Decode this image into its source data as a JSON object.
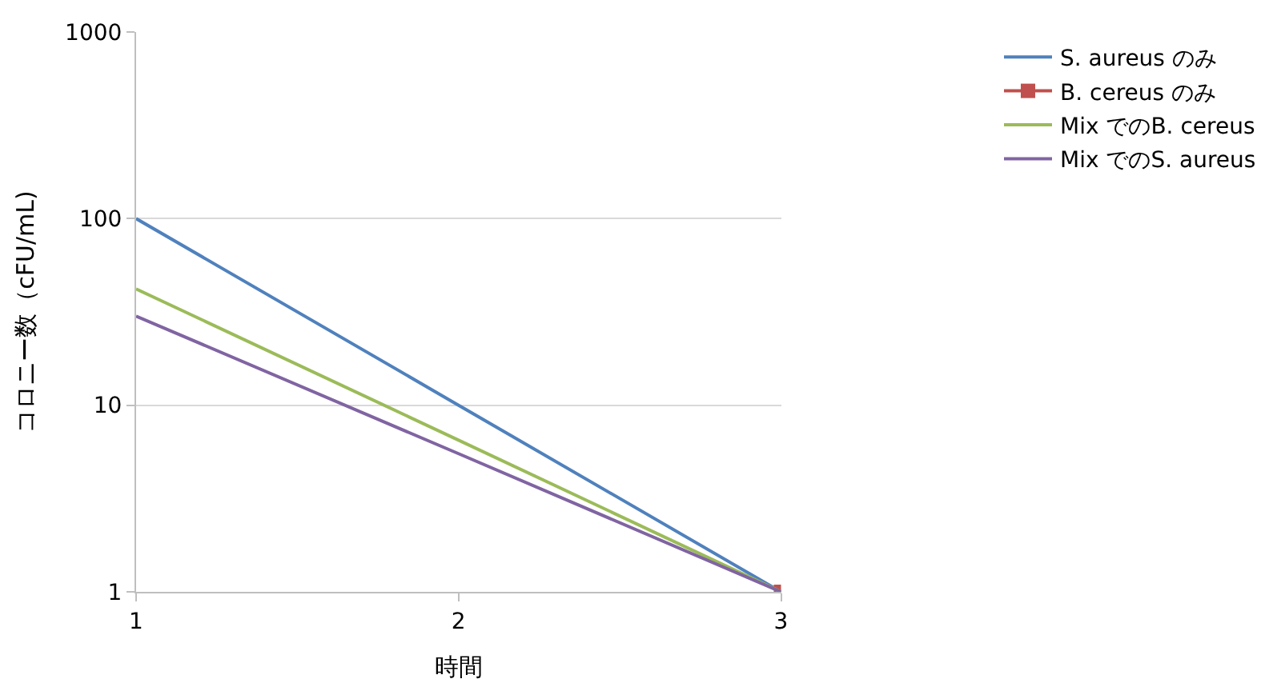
{
  "chart_data": {
    "type": "line",
    "xlabel": "時間",
    "ylabel": "コロニー数（cFU/mL)",
    "x": [
      1,
      2,
      3
    ],
    "xlim": [
      1,
      3
    ],
    "xticks": [
      1,
      2,
      3
    ],
    "log": "y",
    "ylim": [
      1,
      1000
    ],
    "yticks": [
      1,
      10,
      100,
      1000
    ],
    "grid": "y",
    "legend": "top right",
    "series": [
      {
        "name": "S. aureus のみ",
        "color": "#4f81bd",
        "values": [
          100,
          10,
          1
        ],
        "marker": "none"
      },
      {
        "name": "B. cereus のみ",
        "color": "#c0504d",
        "values": [
          null,
          null,
          1
        ],
        "marker": "square"
      },
      {
        "name": "Mix でのB. cereus",
        "color": "#9bbb59",
        "values": [
          42,
          6.5,
          1
        ],
        "marker": "none"
      },
      {
        "name": "Mix でのS. aureus",
        "color": "#8064a2",
        "values": [
          30,
          5.5,
          1
        ],
        "marker": "none"
      }
    ]
  }
}
